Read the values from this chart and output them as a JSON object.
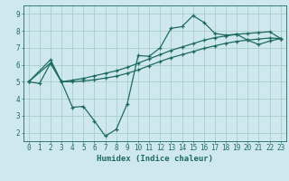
{
  "xlabel": "Humidex (Indice chaleur)",
  "background_color": "#cfe8ef",
  "grid_color": "#a8cfc8",
  "line_color": "#1e6b5e",
  "xlim": [
    -0.5,
    23.5
  ],
  "ylim": [
    1.5,
    9.5
  ],
  "xticks": [
    0,
    1,
    2,
    3,
    4,
    5,
    6,
    7,
    8,
    9,
    10,
    11,
    12,
    13,
    14,
    15,
    16,
    17,
    18,
    19,
    20,
    21,
    22,
    23
  ],
  "yticks": [
    2,
    3,
    4,
    5,
    6,
    7,
    8,
    9
  ],
  "line1_x": [
    0,
    1,
    2,
    3,
    4,
    5,
    6,
    7,
    8,
    9,
    10,
    11,
    12,
    13,
    14,
    15,
    16,
    17,
    18,
    19,
    20,
    21,
    22,
    23
  ],
  "line1_y": [
    5.0,
    4.9,
    6.1,
    5.0,
    3.5,
    3.55,
    2.7,
    1.8,
    2.2,
    3.7,
    6.55,
    6.5,
    7.0,
    8.15,
    8.25,
    8.9,
    8.5,
    7.85,
    7.75,
    7.8,
    7.45,
    7.2,
    7.4,
    7.55
  ],
  "line2_x": [
    0,
    2,
    3,
    4,
    5,
    6,
    7,
    8,
    9,
    10,
    11,
    12,
    13,
    14,
    15,
    16,
    17,
    18,
    19,
    20,
    21,
    22,
    23
  ],
  "line2_y": [
    5.0,
    6.3,
    5.0,
    5.1,
    5.2,
    5.35,
    5.5,
    5.65,
    5.85,
    6.1,
    6.35,
    6.6,
    6.85,
    7.05,
    7.25,
    7.45,
    7.6,
    7.7,
    7.8,
    7.85,
    7.9,
    7.95,
    7.55
  ],
  "line3_x": [
    0,
    2,
    3,
    4,
    5,
    6,
    7,
    8,
    9,
    10,
    11,
    12,
    13,
    14,
    15,
    16,
    17,
    18,
    19,
    20,
    21,
    22,
    23
  ],
  "line3_y": [
    5.0,
    6.1,
    5.0,
    5.0,
    5.05,
    5.12,
    5.22,
    5.33,
    5.5,
    5.7,
    5.95,
    6.2,
    6.42,
    6.6,
    6.78,
    6.97,
    7.12,
    7.27,
    7.38,
    7.46,
    7.52,
    7.58,
    7.55
  ],
  "xlabel_fontsize": 6.5,
  "tick_fontsize": 5.5
}
